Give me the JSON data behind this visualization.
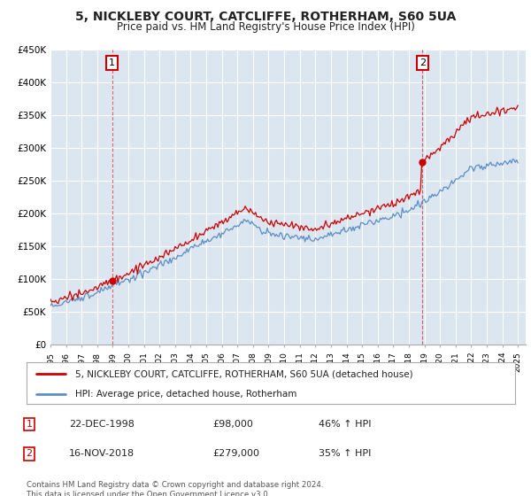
{
  "title": "5, NICKLEBY COURT, CATCLIFFE, ROTHERHAM, S60 5UA",
  "subtitle": "Price paid vs. HM Land Registry's House Price Index (HPI)",
  "footer": "Contains HM Land Registry data © Crown copyright and database right 2024.\nThis data is licensed under the Open Government Licence v3.0.",
  "legend_line1": "5, NICKLEBY COURT, CATCLIFFE, ROTHERHAM, S60 5UA (detached house)",
  "legend_line2": "HPI: Average price, detached house, Rotherham",
  "sale1_label": "1",
  "sale1_date": "22-DEC-1998",
  "sale1_price": "£98,000",
  "sale1_hpi": "46% ↑ HPI",
  "sale2_label": "2",
  "sale2_date": "16-NOV-2018",
  "sale2_price": "£279,000",
  "sale2_hpi": "35% ↑ HPI",
  "hpi_color": "#5b8ec4",
  "sale_color": "#cc0000",
  "plot_bg_color": "#dce6f1",
  "ylim_min": 0,
  "ylim_max": 450000,
  "yticks": [
    0,
    50000,
    100000,
    150000,
    200000,
    250000,
    300000,
    350000,
    400000,
    450000
  ],
  "ytick_labels": [
    "£0",
    "£50K",
    "£100K",
    "£150K",
    "£200K",
    "£250K",
    "£300K",
    "£350K",
    "£400K",
    "£450K"
  ],
  "background_color": "#ffffff",
  "grid_color": "#ffffff",
  "sale1_time": 1998.958,
  "sale2_time": 2018.875,
  "sale1_price_val": 98000,
  "sale2_price_val": 279000
}
